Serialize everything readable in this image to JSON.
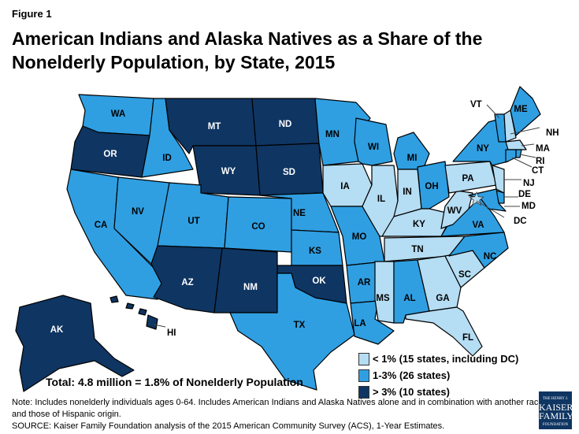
{
  "figure_label": "Figure 1",
  "title": "American Indians and Alaska Natives as a Share of the Nonelderly Population, by State, 2015",
  "colors": {
    "low": "#b5ddf3",
    "mid": "#2f9fe2",
    "high": "#0f3562"
  },
  "legend": [
    {
      "key": "low",
      "label": "< 1% (15 states, including DC)"
    },
    {
      "key": "mid",
      "label": "1-3% (26 states)"
    },
    {
      "key": "high",
      "label": "> 3% (10 states)"
    }
  ],
  "states": {
    "WA": "mid",
    "OR": "high",
    "CA": "mid",
    "NV": "mid",
    "ID": "mid",
    "MT": "high",
    "WY": "high",
    "UT": "mid",
    "CO": "mid",
    "AZ": "high",
    "NM": "high",
    "ND": "high",
    "SD": "high",
    "NE": "mid",
    "KS": "mid",
    "OK": "high",
    "TX": "mid",
    "MN": "mid",
    "IA": "low",
    "MO": "mid",
    "AR": "mid",
    "LA": "mid",
    "WI": "mid",
    "IL": "low",
    "MI": "mid",
    "IN": "low",
    "OH": "mid",
    "KY": "low",
    "TN": "low",
    "MS": "low",
    "AL": "mid",
    "GA": "low",
    "FL": "low",
    "SC": "low",
    "NC": "mid",
    "VA": "mid",
    "WV": "low",
    "PA": "low",
    "NY": "mid",
    "NJ": "low",
    "DE": "mid",
    "MD": "mid",
    "DC": "low",
    "VT": "mid",
    "NH": "low",
    "ME": "mid",
    "MA": "low",
    "CT": "mid",
    "RI": "mid",
    "AK": "high",
    "HI": "high"
  },
  "total": "Total:  4.8 million = 1.8% of Nonelderly Population",
  "notes": [
    "Note: Includes nonelderly individuals ages 0-64. Includes American Indians and Alaska Natives alone and in combination with another race and those of Hispanic origin.",
    "SOURCE: Kaiser Family Foundation  analysis of the 2015 American Community  Survey (ACS), 1-Year Estimates."
  ],
  "logo": [
    "THE HENRY J.",
    "KAISER",
    "FAMILY",
    "FOUNDATION"
  ]
}
